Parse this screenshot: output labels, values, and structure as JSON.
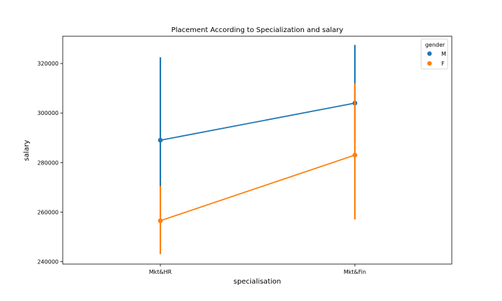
{
  "chart_data": {
    "type": "line",
    "title": "Placement According to Specialization and salary",
    "xlabel": "specialisation",
    "ylabel": "salary",
    "categories": [
      "Mkt&HR",
      "Mkt&Fin"
    ],
    "ylim": [
      239000,
      331000
    ],
    "yticks": [
      240000,
      260000,
      280000,
      300000,
      320000
    ],
    "legend": {
      "title": "gender",
      "placement": "top-right"
    },
    "grid": false,
    "series": [
      {
        "name": "M",
        "color": "#1f77b4",
        "values": [
          289000,
          304000
        ],
        "ci_low": [
          270500,
          288000
        ],
        "ci_high": [
          322500,
          327500
        ]
      },
      {
        "name": "F",
        "color": "#ff7f0e",
        "values": [
          256500,
          283000
        ],
        "ci_low": [
          243000,
          257000
        ],
        "ci_high": [
          270500,
          312000
        ]
      }
    ]
  }
}
